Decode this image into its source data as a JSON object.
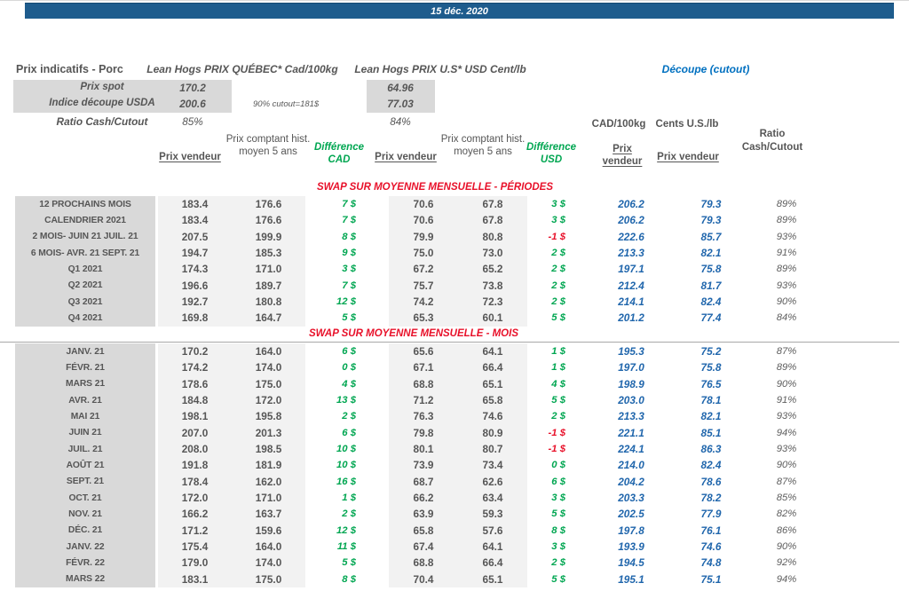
{
  "banner": {
    "date": "15 déc. 2020"
  },
  "top": {
    "title": "Prix indicatifs - Porc",
    "quebec_title": "Lean Hogs PRIX QUÉBEC* Cad/100kg",
    "us_title": "Lean Hogs PRIX U.S* USD Cent/lb",
    "cutout_title": "Découpe (cutout)",
    "spot_label": "Prix spot",
    "spot_qc": "170.2",
    "spot_us": "64.96",
    "usda_label": "Indice découpe USDA",
    "usda_qc": "200.6",
    "usda_us": "77.03",
    "usda_note": "90% cutout=181$",
    "ratio_label": "Ratio Cash/Cutout",
    "ratio_qc": "85%",
    "ratio_us": "84%"
  },
  "table": {
    "headers": {
      "prix_vendeur": "Prix vendeur",
      "prix_comptant": "Prix comptant hist. moyen 5 ans",
      "difference_cad": "Différence CAD",
      "difference_usd": "Différence USD",
      "cutout_cad_unit": "CAD/100kg",
      "cutout_us_unit": "Cents U.S./lb",
      "cutout_prix_vendeur_cad": "Prix vendeur",
      "cutout_prix_vendeur_us": "Prix vendeur",
      "ratio": "Ratio Cash/Cutout"
    },
    "row_columns": [
      "label",
      "qc_prix_vendeur",
      "qc_hist_moyen_5ans",
      "difference_cad",
      "us_prix_vendeur",
      "us_hist_moyen_5ans",
      "difference_usd",
      "cutout_cad_100kg",
      "cutout_cents_us_lb",
      "ratio_cash_cutout"
    ],
    "sections": [
      {
        "title": "SWAP SUR MOYENNE MENSUELLE - PÉRIODES",
        "rows": [
          [
            "12 PROCHAINS MOIS",
            "183.4",
            "176.6",
            "7 $",
            "70.6",
            "67.8",
            "3 $",
            "206.2",
            "79.3",
            "89%"
          ],
          [
            "CALENDRIER 2021",
            "183.4",
            "176.6",
            "7 $",
            "70.6",
            "67.8",
            "3 $",
            "206.2",
            "79.3",
            "89%"
          ],
          [
            "2 MOIS- JUIN 21 JUIL. 21",
            "207.5",
            "199.9",
            "8 $",
            "79.9",
            "80.8",
            "-1 $",
            "222.6",
            "85.7",
            "93%"
          ],
          [
            "6 MOIS- AVR. 21 SEPT. 21",
            "194.7",
            "185.3",
            "9 $",
            "75.0",
            "73.0",
            "2 $",
            "213.3",
            "82.1",
            "91%"
          ],
          [
            "Q1 2021",
            "174.3",
            "171.0",
            "3 $",
            "67.2",
            "65.2",
            "2 $",
            "197.1",
            "75.8",
            "89%"
          ],
          [
            "Q2 2021",
            "196.6",
            "189.7",
            "7 $",
            "75.7",
            "73.8",
            "2 $",
            "212.4",
            "81.7",
            "93%"
          ],
          [
            "Q3 2021",
            "192.7",
            "180.8",
            "12 $",
            "74.2",
            "72.3",
            "2 $",
            "214.1",
            "82.4",
            "90%"
          ],
          [
            "Q4 2021",
            "169.8",
            "164.7",
            "5 $",
            "65.3",
            "60.1",
            "5 $",
            "201.2",
            "77.4",
            "84%"
          ]
        ]
      },
      {
        "title": "SWAP SUR MOYENNE MENSUELLE - MOIS",
        "rows": [
          [
            "JANV. 21",
            "170.2",
            "164.0",
            "6 $",
            "65.6",
            "64.1",
            "1 $",
            "195.3",
            "75.2",
            "87%"
          ],
          [
            "FÉVR. 21",
            "174.2",
            "174.0",
            "0 $",
            "67.1",
            "66.4",
            "1 $",
            "197.0",
            "75.8",
            "89%"
          ],
          [
            "MARS 21",
            "178.6",
            "175.0",
            "4 $",
            "68.8",
            "65.1",
            "4 $",
            "198.9",
            "76.5",
            "90%"
          ],
          [
            "AVR. 21",
            "184.8",
            "172.0",
            "13 $",
            "71.2",
            "65.8",
            "5 $",
            "203.0",
            "78.1",
            "91%"
          ],
          [
            "MAI 21",
            "198.1",
            "195.8",
            "2 $",
            "76.3",
            "74.6",
            "2 $",
            "213.3",
            "82.1",
            "93%"
          ],
          [
            "JUIN 21",
            "207.0",
            "201.3",
            "6 $",
            "79.8",
            "80.9",
            "-1 $",
            "221.1",
            "85.1",
            "94%"
          ],
          [
            "JUIL. 21",
            "208.0",
            "198.5",
            "10 $",
            "80.1",
            "80.7",
            "-1 $",
            "224.1",
            "86.3",
            "93%"
          ],
          [
            "AOÛT 21",
            "191.8",
            "181.9",
            "10 $",
            "73.9",
            "73.4",
            "0 $",
            "214.0",
            "82.4",
            "90%"
          ],
          [
            "SEPT. 21",
            "178.4",
            "162.0",
            "16 $",
            "68.7",
            "62.6",
            "6 $",
            "204.2",
            "78.6",
            "87%"
          ],
          [
            "OCT. 21",
            "172.0",
            "171.0",
            "1 $",
            "66.2",
            "63.4",
            "3 $",
            "203.3",
            "78.2",
            "85%"
          ],
          [
            "NOV. 21",
            "166.2",
            "163.7",
            "2 $",
            "63.9",
            "59.3",
            "5 $",
            "202.5",
            "77.9",
            "82%"
          ],
          [
            "DÉC. 21",
            "171.2",
            "159.6",
            "12 $",
            "65.8",
            "57.6",
            "8 $",
            "197.8",
            "76.1",
            "86%"
          ],
          [
            "JANV. 22",
            "175.4",
            "164.0",
            "11 $",
            "67.4",
            "64.1",
            "3 $",
            "193.9",
            "74.6",
            "90%"
          ],
          [
            "FÉVR. 22",
            "179.0",
            "174.0",
            "5 $",
            "68.8",
            "66.4",
            "2 $",
            "194.5",
            "74.8",
            "92%"
          ],
          [
            "MARS 22",
            "183.1",
            "175.0",
            "8 $",
            "70.4",
            "65.1",
            "5 $",
            "195.1",
            "75.1",
            "94%"
          ]
        ]
      }
    ]
  },
  "colors": {
    "banner_blue": "#1e5c8d",
    "cutout_title_blue": "#0070c0",
    "cutout_value_blue": "#2066ac",
    "positive_green": "#00a651",
    "negative_red": "#e8112a",
    "label_bg_gray": "#d9d9d9",
    "band_bg_gray": "#f2f2f2"
  }
}
